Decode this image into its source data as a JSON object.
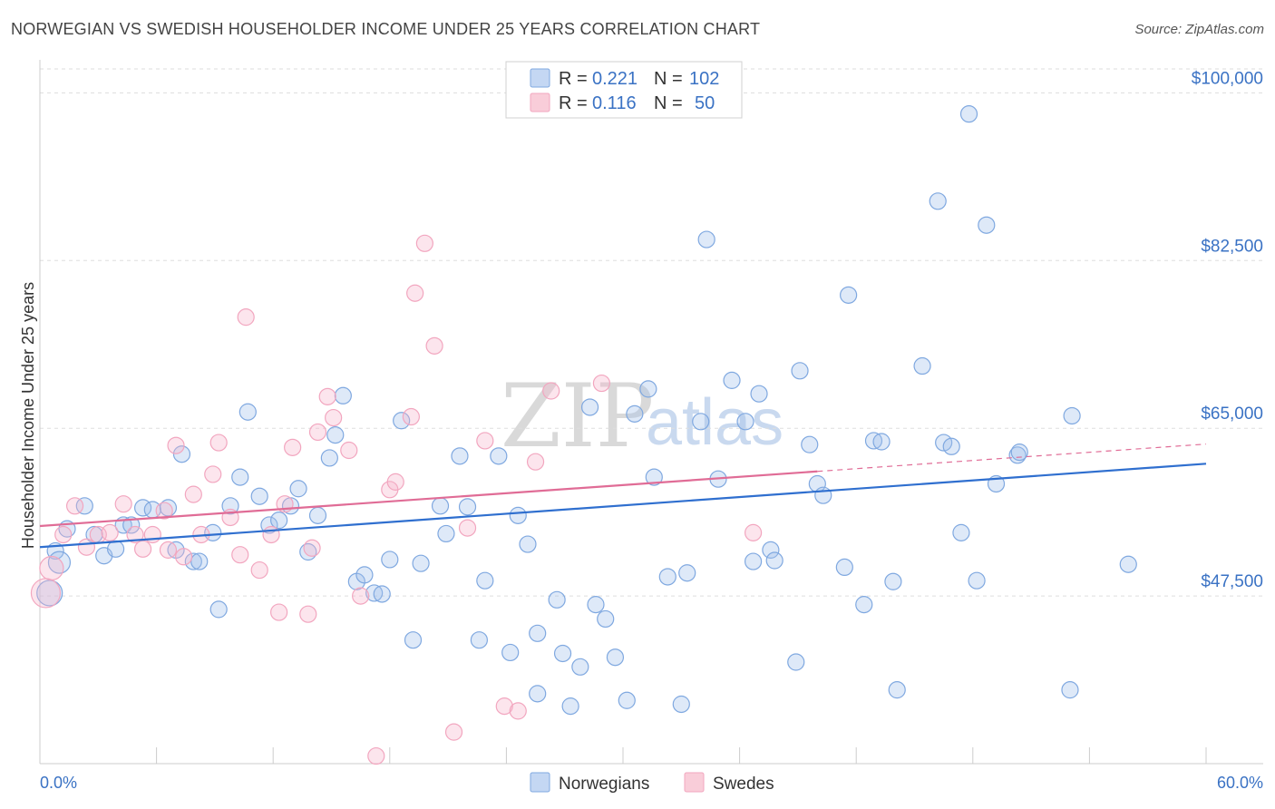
{
  "title": "NORWEGIAN VS SWEDISH HOUSEHOLDER INCOME UNDER 25 YEARS CORRELATION CHART",
  "source": "Source: ZipAtlas.com",
  "watermark": {
    "zip": "ZIP",
    "atlas": "atlas"
  },
  "chart_data": {
    "type": "scatter",
    "xlabel": "",
    "ylabel": "Householder Income Under 25 years",
    "xlim": [
      0,
      60
    ],
    "ylim": [
      30000,
      102500
    ],
    "x_tick_labels": [
      "0.0%",
      "60.0%"
    ],
    "y_ticks": [
      47500,
      65000,
      82500,
      100000
    ],
    "y_tick_labels": [
      "$47,500",
      "$65,000",
      "$82,500",
      "$100,000"
    ],
    "grid": true,
    "legend_position": "top-center",
    "stats": [
      {
        "r_label": "R =",
        "r": "0.221",
        "n_label": "N =",
        "n": "102"
      },
      {
        "r_label": "R =",
        "r": "0.116",
        "n_label": "N =",
        "n": "50"
      }
    ],
    "series": [
      {
        "name": "Norwegians",
        "color": "#7fa8e0",
        "line_color": "#2f6fcf",
        "trend": {
          "x": [
            0,
            60
          ],
          "y": [
            52600,
            61300
          ]
        },
        "points": [
          [
            0.8,
            52200
          ],
          [
            1.4,
            54500
          ],
          [
            2.3,
            56900
          ],
          [
            2.8,
            53900
          ],
          [
            3.3,
            51700
          ],
          [
            3.9,
            52400
          ],
          [
            4.3,
            54900
          ],
          [
            4.7,
            54900
          ],
          [
            5.3,
            56700
          ],
          [
            5.8,
            56500
          ],
          [
            6.6,
            56700
          ],
          [
            7.0,
            52300
          ],
          [
            7.3,
            62300
          ],
          [
            7.9,
            51100
          ],
          [
            8.2,
            51100
          ],
          [
            8.9,
            54100
          ],
          [
            9.2,
            46100
          ],
          [
            9.8,
            56900
          ],
          [
            10.3,
            59900
          ],
          [
            10.7,
            66700
          ],
          [
            11.3,
            57900
          ],
          [
            11.8,
            54900
          ],
          [
            12.3,
            55400
          ],
          [
            12.9,
            56900
          ],
          [
            13.3,
            58700
          ],
          [
            13.8,
            52100
          ],
          [
            14.3,
            55900
          ],
          [
            14.9,
            61900
          ],
          [
            15.2,
            64300
          ],
          [
            15.6,
            68400
          ],
          [
            16.3,
            49000
          ],
          [
            16.7,
            49700
          ],
          [
            17.2,
            47800
          ],
          [
            17.6,
            47700
          ],
          [
            18.0,
            51300
          ],
          [
            18.6,
            65800
          ],
          [
            19.2,
            42900
          ],
          [
            19.6,
            50900
          ],
          [
            20.6,
            56900
          ],
          [
            20.9,
            54000
          ],
          [
            21.6,
            62100
          ],
          [
            22.0,
            56800
          ],
          [
            22.6,
            42900
          ],
          [
            22.9,
            49100
          ],
          [
            23.6,
            62100
          ],
          [
            24.2,
            41600
          ],
          [
            24.6,
            55900
          ],
          [
            25.1,
            52900
          ],
          [
            25.6,
            37300
          ],
          [
            25.6,
            43600
          ],
          [
            26.6,
            47100
          ],
          [
            26.9,
            41500
          ],
          [
            27.3,
            36000
          ],
          [
            27.8,
            40100
          ],
          [
            28.3,
            67200
          ],
          [
            28.6,
            46600
          ],
          [
            29.1,
            45100
          ],
          [
            29.6,
            41100
          ],
          [
            30.2,
            36600
          ],
          [
            30.6,
            66500
          ],
          [
            31.3,
            69100
          ],
          [
            31.6,
            59900
          ],
          [
            32.3,
            49500
          ],
          [
            33.0,
            36200
          ],
          [
            33.3,
            49900
          ],
          [
            34.0,
            65700
          ],
          [
            34.3,
            84700
          ],
          [
            34.9,
            59700
          ],
          [
            35.6,
            70000
          ],
          [
            36.3,
            65700
          ],
          [
            36.7,
            51100
          ],
          [
            37.0,
            68600
          ],
          [
            37.6,
            52300
          ],
          [
            37.8,
            51200
          ],
          [
            38.9,
            40600
          ],
          [
            39.1,
            71000
          ],
          [
            39.6,
            63300
          ],
          [
            40.0,
            59200
          ],
          [
            40.3,
            58000
          ],
          [
            41.4,
            50500
          ],
          [
            41.6,
            78900
          ],
          [
            42.4,
            46600
          ],
          [
            42.9,
            63700
          ],
          [
            43.3,
            63600
          ],
          [
            43.9,
            49000
          ],
          [
            44.1,
            37700
          ],
          [
            45.4,
            71500
          ],
          [
            46.5,
            63500
          ],
          [
            46.9,
            63100
          ],
          [
            47.4,
            54100
          ],
          [
            47.8,
            97800
          ],
          [
            48.2,
            49100
          ],
          [
            48.7,
            86200
          ],
          [
            49.2,
            59200
          ],
          [
            50.3,
            62200
          ],
          [
            50.4,
            62500
          ],
          [
            53.0,
            37700
          ],
          [
            53.1,
            66300
          ],
          [
            56.0,
            50800
          ],
          [
            1.0,
            51000
          ],
          [
            0.5,
            47800
          ],
          [
            46.2,
            88700
          ]
        ]
      },
      {
        "name": "Swedes",
        "color": "#f2a6bf",
        "line_color": "#e06c96",
        "trend": {
          "x": [
            0,
            40
          ],
          "y": [
            54800,
            60500
          ]
        },
        "points": [
          [
            0.6,
            50400
          ],
          [
            1.2,
            53900
          ],
          [
            1.8,
            56900
          ],
          [
            2.4,
            52600
          ],
          [
            3.0,
            53900
          ],
          [
            3.6,
            54100
          ],
          [
            4.3,
            57100
          ],
          [
            4.9,
            53900
          ],
          [
            5.3,
            52400
          ],
          [
            5.8,
            53900
          ],
          [
            6.4,
            56400
          ],
          [
            6.6,
            52300
          ],
          [
            7.0,
            63200
          ],
          [
            7.4,
            51600
          ],
          [
            7.9,
            58100
          ],
          [
            8.3,
            53900
          ],
          [
            8.9,
            60200
          ],
          [
            9.2,
            63500
          ],
          [
            9.8,
            55700
          ],
          [
            10.3,
            51800
          ],
          [
            10.6,
            76600
          ],
          [
            11.3,
            50200
          ],
          [
            11.9,
            53900
          ],
          [
            12.3,
            45800
          ],
          [
            12.6,
            57100
          ],
          [
            13.0,
            63000
          ],
          [
            13.8,
            45600
          ],
          [
            14.0,
            52500
          ],
          [
            14.3,
            64600
          ],
          [
            14.8,
            68300
          ],
          [
            15.1,
            66100
          ],
          [
            15.9,
            62700
          ],
          [
            16.5,
            47500
          ],
          [
            17.3,
            30800
          ],
          [
            18.0,
            58600
          ],
          [
            18.3,
            59400
          ],
          [
            19.1,
            66200
          ],
          [
            19.8,
            84300
          ],
          [
            19.3,
            79100
          ],
          [
            20.3,
            73600
          ],
          [
            21.3,
            33300
          ],
          [
            22.0,
            54600
          ],
          [
            22.9,
            63700
          ],
          [
            23.9,
            36000
          ],
          [
            24.6,
            35500
          ],
          [
            25.5,
            61500
          ],
          [
            26.3,
            68900
          ],
          [
            28.9,
            69700
          ],
          [
            36.7,
            54100
          ],
          [
            0.3,
            47800
          ]
        ]
      }
    ]
  }
}
